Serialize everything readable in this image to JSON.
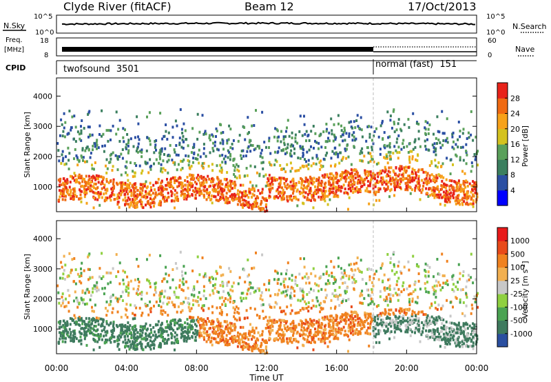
{
  "header": {
    "station": "Clyde River (fitACF)",
    "beam": "Beam 12",
    "date": "17/Oct/2013"
  },
  "noise_panel": {
    "left_label": "N.Sky",
    "right_label": "N.Search",
    "ticks_left": [
      "10^5",
      "10^0"
    ],
    "ticks_right": [
      "10^5",
      "10^0"
    ]
  },
  "freq_panel": {
    "left_label_top": "Freq.",
    "left_label_unit": "[MHz]",
    "ticks_left": [
      "18",
      "8"
    ],
    "right_label": "Nave",
    "ticks_right": [
      "60",
      "0"
    ]
  },
  "cpid_panel": {
    "label": "CPID",
    "segments": [
      {
        "name": "twofsound",
        "id": "3501",
        "start_hour": 0,
        "end_hour": 18
      },
      {
        "name": "normal (fast)",
        "id": "151",
        "start_hour": 18,
        "end_hour": 24
      }
    ]
  },
  "colors": {
    "power_scale": [
      "#0000ff",
      "#2b4fa3",
      "#3b7f5f",
      "#5aa05a",
      "#d4c21f",
      "#f7a21a",
      "#f06a12",
      "#e8231a"
    ],
    "velocity_scale": [
      "#2a4fa0",
      "#3e7a5e",
      "#4aa352",
      "#8fd040",
      "#c8c8c8",
      "#f2b050",
      "#f08220",
      "#e84a1a",
      "#e81a1a"
    ]
  },
  "chart_data": [
    {
      "type": "heatmap",
      "title": "",
      "xlabel": "Time UT",
      "ylabel": "Slant Range [km]",
      "x_ticks": [
        "00:00",
        "04:00",
        "08:00",
        "12:00",
        "16:00",
        "20:00",
        "00:00"
      ],
      "xlim_hours": [
        0,
        24
      ],
      "y_ticks": [
        "1000",
        "2000",
        "3000",
        "4000"
      ],
      "ylim_km": [
        180,
        4600
      ],
      "colorbar_label": "Power [dB]",
      "colorbar_ticks": [
        "28",
        "24",
        "20",
        "16",
        "12",
        "8",
        "4"
      ],
      "colorbar_range": [
        0,
        32
      ]
    },
    {
      "type": "heatmap",
      "title": "",
      "xlabel": "Time UT",
      "ylabel": "Slant Range [km]",
      "x_ticks": [
        "00:00",
        "04:00",
        "08:00",
        "12:00",
        "16:00",
        "20:00",
        "00:00"
      ],
      "xlim_hours": [
        0,
        24
      ],
      "y_ticks": [
        "1000",
        "2000",
        "3000",
        "4000"
      ],
      "ylim_km": [
        180,
        4600
      ],
      "colorbar_label": "Velocity [m s^-1]",
      "colorbar_ticks": [
        "1000",
        "500",
        "100",
        "25",
        "-25",
        "-100",
        "-500",
        "-1000"
      ]
    }
  ]
}
